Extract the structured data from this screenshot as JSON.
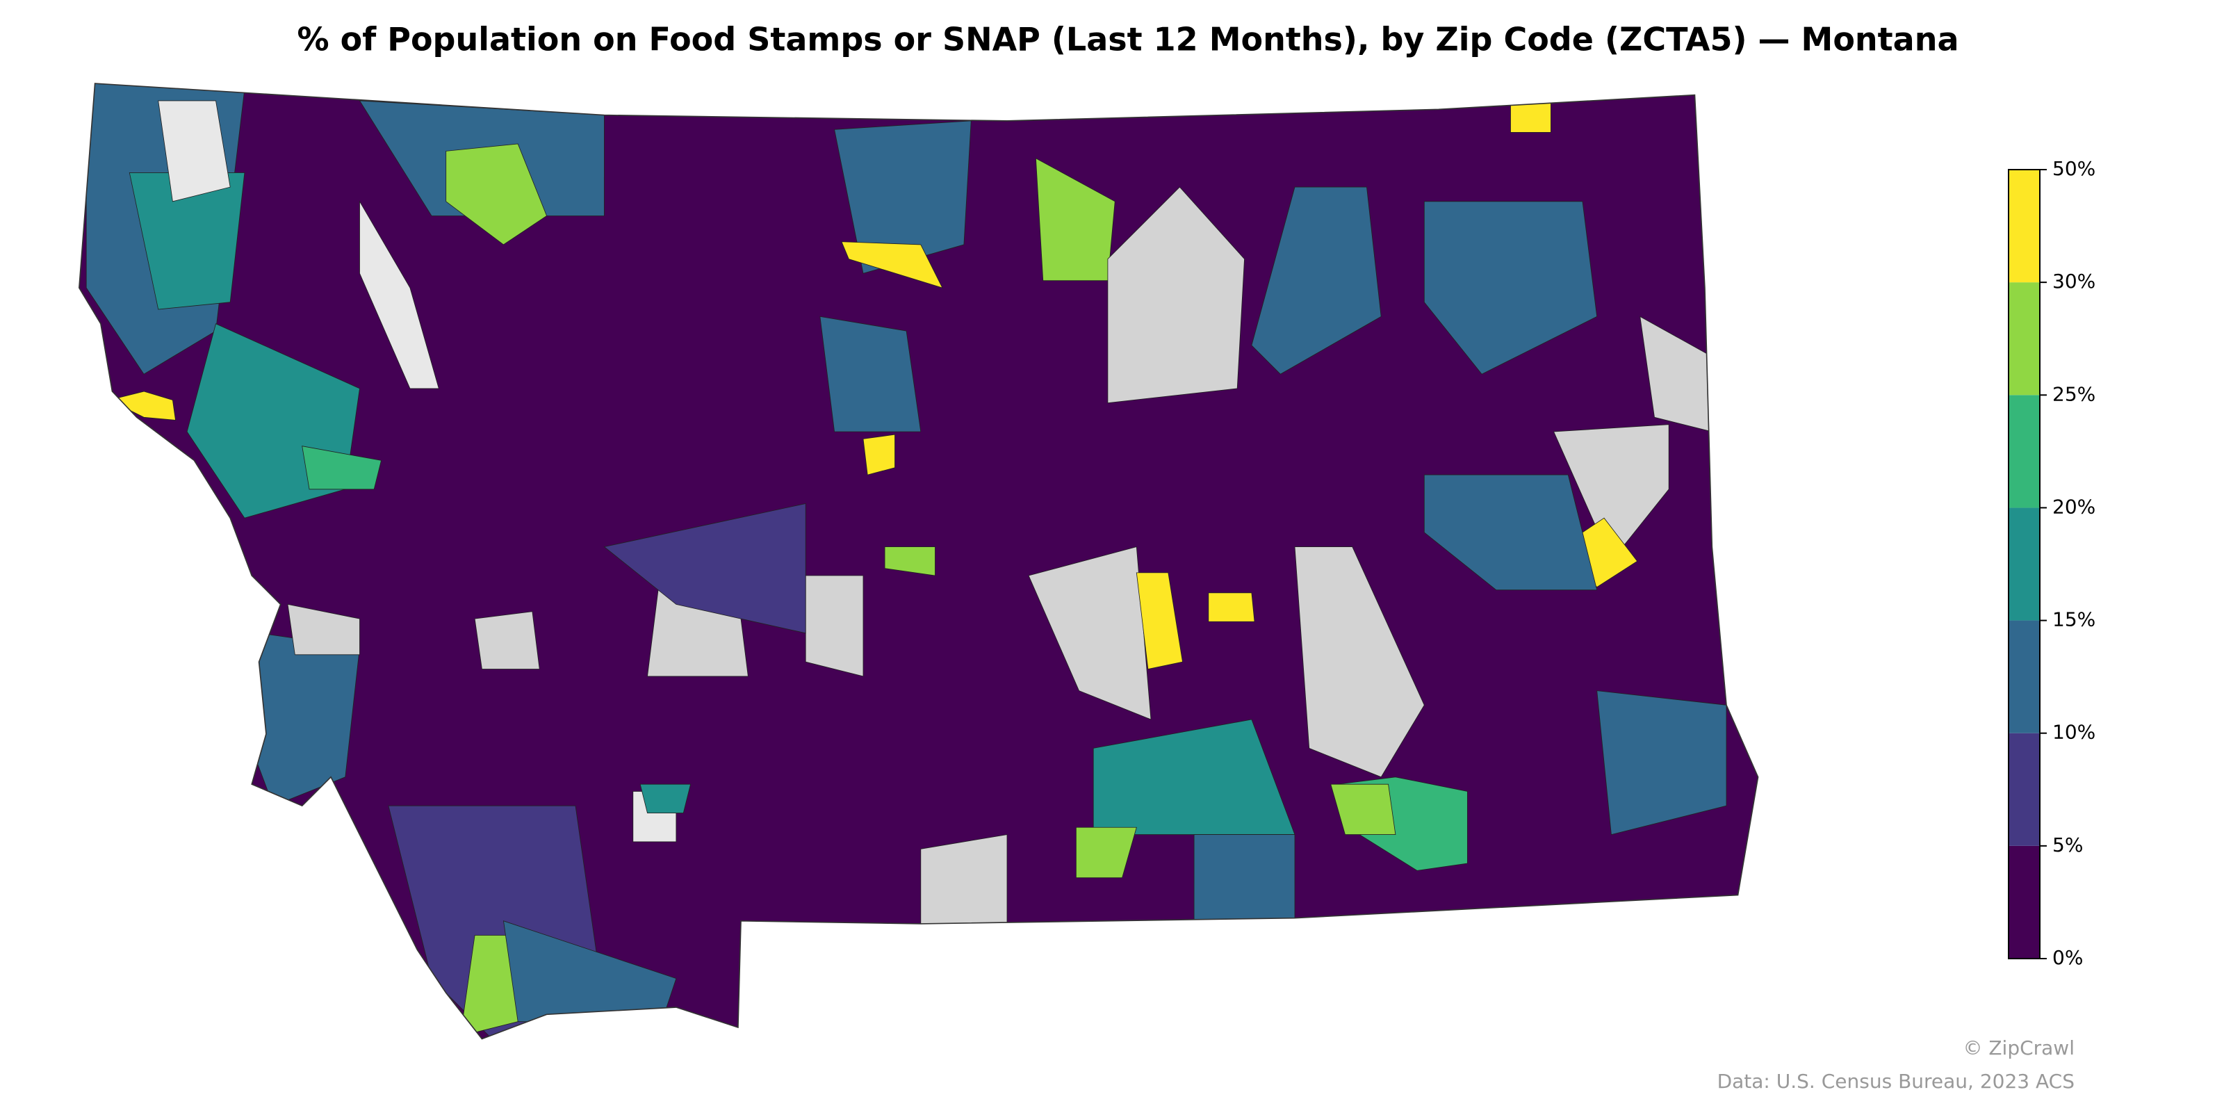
{
  "chart_data": {
    "type": "choropleth",
    "title": "% of Population on Food Stamps or SNAP (Last 12 Months), by Zip Code (ZCTA5) — Montana",
    "colorbar": {
      "ticks": [
        {
          "value": 0,
          "label": "0%"
        },
        {
          "value": 5,
          "label": "5%"
        },
        {
          "value": 10,
          "label": "10%"
        },
        {
          "value": 15,
          "label": "15%"
        },
        {
          "value": 20,
          "label": "20%"
        },
        {
          "value": 25,
          "label": "25%"
        },
        {
          "value": 30,
          "label": "30%"
        },
        {
          "value": 50,
          "label": "50%"
        }
      ],
      "colors": [
        "#440154",
        "#443983",
        "#31688e",
        "#21918c",
        "#35b779",
        "#90d743",
        "#fde725"
      ]
    },
    "credit": "© ZipCrawl",
    "source": "Data: U.S. Census Bureau, 2023 ACS"
  }
}
